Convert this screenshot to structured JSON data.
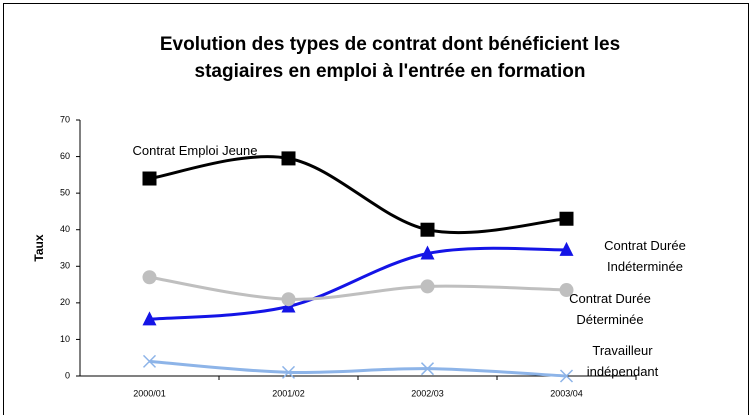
{
  "chart_data": {
    "type": "line",
    "title": [
      "Evolution des types de contrat dont bénéficient les",
      "stagiaires en emploi à l'entrée en formation"
    ],
    "y_label": "Taux",
    "categories": [
      "2000/01",
      "2001/02",
      "2002/03",
      "2003/04"
    ],
    "series": [
      {
        "name": "Contrat Emploi Jeune",
        "color": "#000000",
        "marker": "square",
        "values": [
          54,
          59.5,
          40,
          43
        ]
      },
      {
        "name": "Contrat Durée Indéterminée",
        "color": "#1414e6",
        "marker": "triangle",
        "values": [
          15.5,
          19,
          33.5,
          34.5
        ]
      },
      {
        "name": "Contrat Durée Déterminée",
        "color": "#bfbfbf",
        "marker": "circle",
        "values": [
          27,
          21,
          24.5,
          23.5
        ]
      },
      {
        "name": "Travailleur indépendant",
        "color": "#8db4e8",
        "marker": "x",
        "values": [
          4,
          1,
          2,
          0
        ]
      }
    ],
    "ylim": [
      0,
      70
    ],
    "yticks": [
      0,
      10,
      20,
      30,
      40,
      50,
      60,
      70
    ],
    "grid": false
  }
}
